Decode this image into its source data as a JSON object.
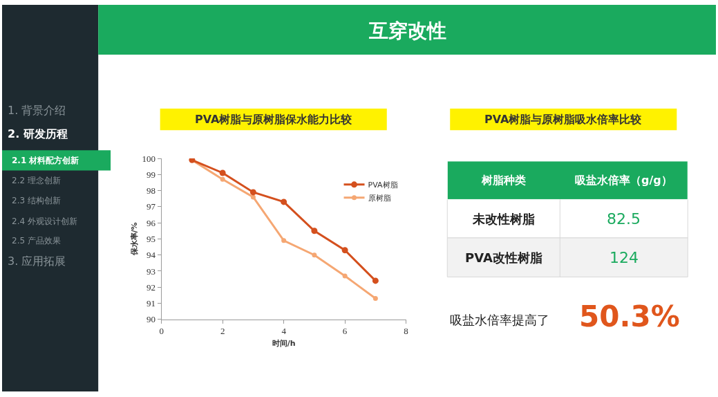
{
  "chart_data": [
    {
      "type": "other",
      "title": "互穿改性",
      "annotations": [
        "1. 背景介绍",
        "2. 研发历程",
        "2.1 材料配方创新",
        "2.2 理念创新",
        "2.3 结构创新",
        "2.4 外观设计创新",
        "2.5 产品效果",
        "3. 应用拓展"
      ]
    },
    {
      "type": "line",
      "title": "PVA树脂与原树脂保水能力比较",
      "xlabel": "时间/h",
      "ylabel": "保水率/%",
      "x": [
        1,
        2,
        3,
        4,
        5,
        6,
        7
      ],
      "series": [
        {
          "name": "PVA树脂",
          "color": "#d4501e",
          "values": [
            99.9,
            99.1,
            97.9,
            97.3,
            95.5,
            94.3,
            92.4
          ]
        },
        {
          "name": "原树脂",
          "color": "#f5a773",
          "values": [
            99.9,
            98.7,
            97.6,
            94.9,
            94.0,
            92.7,
            91.3
          ]
        }
      ],
      "xlim": [
        0,
        8
      ],
      "xticks": [
        0,
        2,
        4,
        6,
        8
      ],
      "ylim": [
        90,
        100
      ],
      "yticks": [
        90,
        91,
        92,
        93,
        94,
        95,
        96,
        97,
        98,
        99,
        100
      ],
      "legend": "top right",
      "marker": "circle",
      "line_style": "solid"
    },
    {
      "type": "other",
      "title": "PVA树脂与原树脂吸水倍率比较",
      "xlabel": "树脂种类",
      "ylabel": "吸盐水倍率（g/g）",
      "categories": [
        "未改性树脂",
        "PVA改性树脂"
      ],
      "values": [
        82.5,
        124
      ],
      "data_labels": true,
      "annotations": [
        "吸盐水倍率提高了",
        "50.3%"
      ]
    }
  ]
}
